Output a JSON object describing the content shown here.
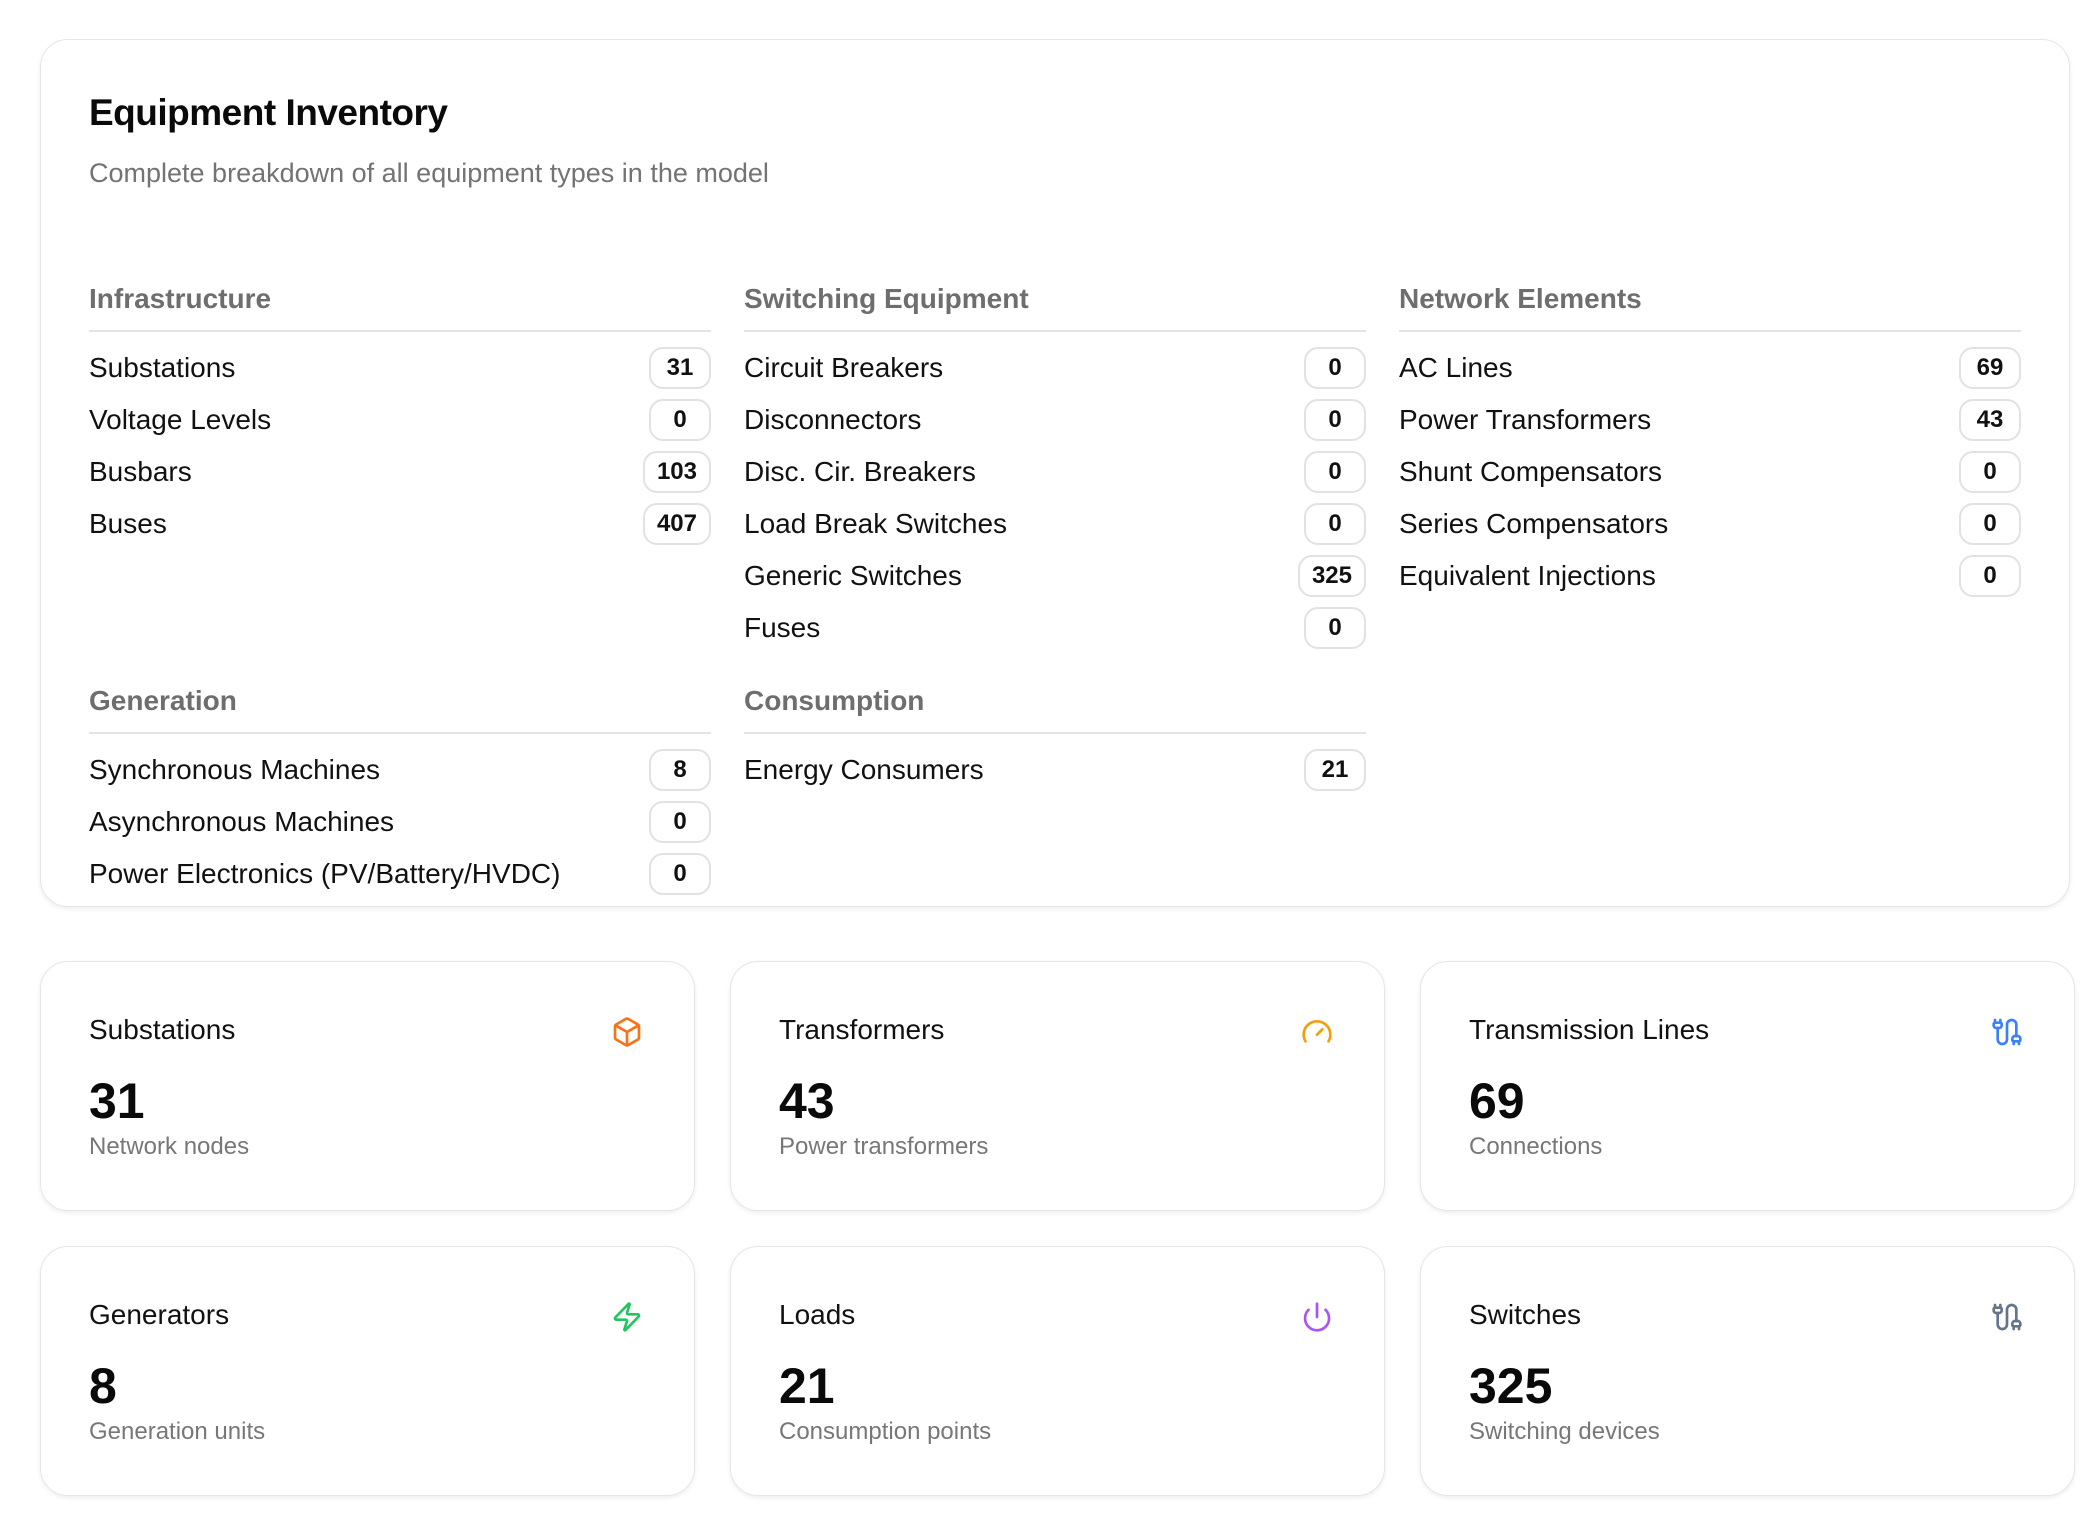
{
  "inventory": {
    "title": "Equipment Inventory",
    "subtitle": "Complete breakdown of all equipment types in the model",
    "sections": [
      {
        "header": "Infrastructure",
        "items": [
          {
            "label": "Substations",
            "count": "31"
          },
          {
            "label": "Voltage Levels",
            "count": "0"
          },
          {
            "label": "Busbars",
            "count": "103"
          },
          {
            "label": "Buses",
            "count": "407"
          }
        ]
      },
      {
        "header": "Switching Equipment",
        "items": [
          {
            "label": "Circuit Breakers",
            "count": "0"
          },
          {
            "label": "Disconnectors",
            "count": "0"
          },
          {
            "label": "Disc. Cir. Breakers",
            "count": "0"
          },
          {
            "label": "Load Break Switches",
            "count": "0"
          },
          {
            "label": "Generic Switches",
            "count": "325"
          },
          {
            "label": "Fuses",
            "count": "0"
          }
        ]
      },
      {
        "header": "Network Elements",
        "items": [
          {
            "label": "AC Lines",
            "count": "69"
          },
          {
            "label": "Power Transformers",
            "count": "43"
          },
          {
            "label": "Shunt Compensators",
            "count": "0"
          },
          {
            "label": "Series Compensators",
            "count": "0"
          },
          {
            "label": "Equivalent Injections",
            "count": "0"
          }
        ]
      },
      {
        "header": "Generation",
        "items": [
          {
            "label": "Synchronous Machines",
            "count": "8"
          },
          {
            "label": "Asynchronous Machines",
            "count": "0"
          },
          {
            "label": "Power Electronics (PV/Battery/HVDC)",
            "count": "0"
          }
        ]
      },
      {
        "header": "Consumption",
        "items": [
          {
            "label": "Energy Consumers",
            "count": "21"
          }
        ]
      }
    ]
  },
  "stats": [
    {
      "title": "Substations",
      "value": "31",
      "description": "Network nodes",
      "icon": "box-icon",
      "color": "#f97316"
    },
    {
      "title": "Transformers",
      "value": "43",
      "description": "Power transformers",
      "icon": "gauge-icon",
      "color": "#f59e0b"
    },
    {
      "title": "Transmission Lines",
      "value": "69",
      "description": "Connections",
      "icon": "cable-icon",
      "color": "#3b82f6"
    },
    {
      "title": "Generators",
      "value": "8",
      "description": "Generation units",
      "icon": "zap-icon",
      "color": "#22c55e"
    },
    {
      "title": "Loads",
      "value": "21",
      "description": "Consumption points",
      "icon": "power-icon",
      "color": "#a855f7"
    },
    {
      "title": "Switches",
      "value": "325",
      "description": "Switching devices",
      "icon": "cable-icon",
      "color": "#64748b"
    }
  ]
}
